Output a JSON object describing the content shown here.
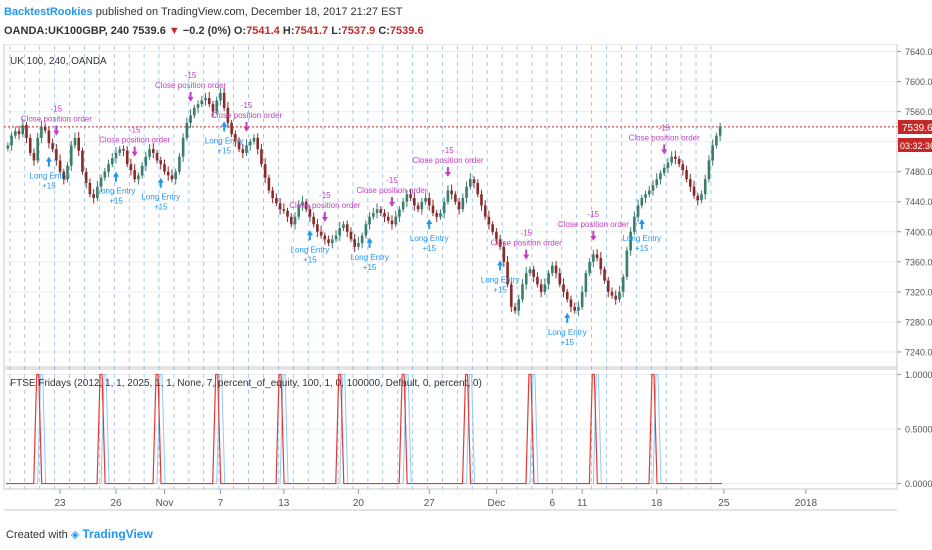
{
  "header": {
    "author": "BacktestRookies",
    "published_text": "published on TradingView.com, December 18, 2017 21:27 EST",
    "symbol": "OANDA:UK100GBP, 240",
    "last": "7539.6",
    "change_arrow": "▼",
    "change": "−0.2 (0%)",
    "o_label": "O:",
    "o": "7541.4",
    "h_label": "H:",
    "h": "7541.7",
    "l_label": "L:",
    "l": "7537.9",
    "c_label": "C:",
    "c": "7539.6"
  },
  "main_pane": {
    "legend": "UK 100, 240, OANDA",
    "last_price_label": "7539.6",
    "countdown_label": "03:32:36",
    "colors": {
      "up": "#3a7d6a",
      "down": "#8a2a2a",
      "signal_buy": "#2196f3",
      "signal_close": "#c040c0",
      "last_price": "#c62828"
    }
  },
  "indicator_pane": {
    "legend": "FTSE Fridays (2012, 1, 1, 2025, 1, 1, None, 7, percent_of_equity, 100, 1, 0, 100000, Default, 0, percent, 0)",
    "line_color": "#e53935",
    "shadow_color": "#90caf9"
  },
  "footer": {
    "created_with": "Created with",
    "brand": "TradingView"
  },
  "chart_data": {
    "type": "candlestick",
    "y_axis": {
      "range": [
        7220,
        7650
      ],
      "ticks": [
        "7640.0",
        "7600.0",
        "7560.0",
        "7520.0",
        "7480.0",
        "7440.0",
        "7400.0",
        "7360.0",
        "7320.0",
        "7280.0",
        "7240.0"
      ]
    },
    "indicator_axis": {
      "range": [
        -0.05,
        1.05
      ],
      "ticks": [
        "1.0000",
        "0.5000",
        "0.0000"
      ]
    },
    "x_axis": {
      "ticks": [
        "23",
        "26",
        "Nov",
        "7",
        "13",
        "20",
        "27",
        "Dec",
        "6",
        "11",
        "18",
        "25",
        "2018"
      ]
    },
    "closes": [
      7515,
      7528,
      7534,
      7530,
      7542,
      7525,
      7505,
      7495,
      7525,
      7540,
      7535,
      7518,
      7510,
      7495,
      7480,
      7470,
      7488,
      7515,
      7525,
      7508,
      7480,
      7465,
      7450,
      7445,
      7460,
      7472,
      7480,
      7490,
      7498,
      7505,
      7510,
      7508,
      7490,
      7482,
      7470,
      7475,
      7488,
      7500,
      7510,
      7505,
      7495,
      7490,
      7480,
      7475,
      7470,
      7480,
      7500,
      7525,
      7545,
      7555,
      7565,
      7570,
      7575,
      7578,
      7570,
      7560,
      7575,
      7585,
      7565,
      7545,
      7530,
      7520,
      7510,
      7505,
      7515,
      7520,
      7525,
      7510,
      7490,
      7472,
      7455,
      7445,
      7438,
      7430,
      7428,
      7420,
      7410,
      7420,
      7435,
      7440,
      7430,
      7420,
      7410,
      7400,
      7395,
      7390,
      7385,
      7390,
      7395,
      7405,
      7410,
      7400,
      7390,
      7380,
      7385,
      7395,
      7410,
      7420,
      7425,
      7430,
      7425,
      7420,
      7415,
      7410,
      7420,
      7430,
      7440,
      7450,
      7445,
      7435,
      7430,
      7440,
      7445,
      7435,
      7425,
      7420,
      7425,
      7440,
      7455,
      7450,
      7440,
      7430,
      7445,
      7460,
      7470,
      7465,
      7450,
      7435,
      7420,
      7410,
      7400,
      7390,
      7380,
      7360,
      7330,
      7300,
      7295,
      7310,
      7330,
      7345,
      7350,
      7340,
      7330,
      7320,
      7330,
      7345,
      7355,
      7345,
      7330,
      7320,
      7310,
      7300,
      7295,
      7300,
      7320,
      7345,
      7360,
      7370,
      7365,
      7350,
      7335,
      7320,
      7315,
      7310,
      7320,
      7340,
      7375,
      7400,
      7420,
      7435,
      7445,
      7450,
      7455,
      7462,
      7470,
      7478,
      7485,
      7492,
      7500,
      7497,
      7490,
      7482,
      7470,
      7460,
      7448,
      7442,
      7450,
      7470,
      7495,
      7515,
      7528,
      7540
    ],
    "annotations": {
      "buy_label": [
        "Long Entry",
        "+15"
      ],
      "close_label": "Close position order",
      "close_qty": "-15"
    }
  }
}
